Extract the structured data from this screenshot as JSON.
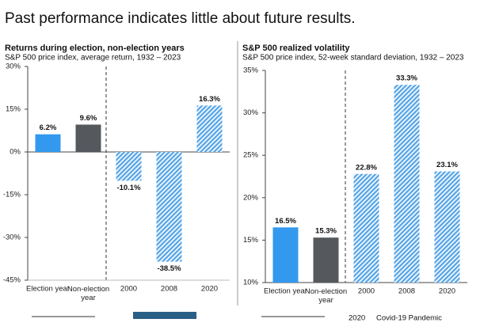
{
  "header": {
    "title": "Past performance indicates little about future results."
  },
  "chart_data": [
    {
      "type": "bar",
      "title": "Returns during election, non-election years",
      "subtitle": "S&P 500 price index, average return, 1932 – 2023",
      "categories": [
        "Election year",
        "Non-election year",
        "2000",
        "2008",
        "2020"
      ],
      "values": [
        6.2,
        9.6,
        -10.1,
        -38.5,
        16.3
      ],
      "value_labels": [
        "6.2%",
        "9.6%",
        "-10.1%",
        "-38.5%",
        "16.3%"
      ],
      "colors": [
        "#3399ee",
        "#55595e",
        "#5aa7e8",
        "#5aa7e8",
        "#5aa7e8"
      ],
      "hatched": [
        false,
        false,
        true,
        true,
        true
      ],
      "ylim": [
        -45,
        30
      ],
      "yticks": [
        {
          "value": -45,
          "label": "-45%"
        },
        {
          "value": -30,
          "label": "-30%"
        },
        {
          "value": -15,
          "label": "-15%"
        },
        {
          "value": 0,
          "label": "0%"
        },
        {
          "value": 15,
          "label": "15%"
        },
        {
          "value": 30,
          "label": "30%"
        }
      ]
    },
    {
      "type": "bar",
      "title": "S&P 500 realized volatility",
      "subtitle": "S&P 500 price index, 52-week standard deviation, 1932 – 2023",
      "categories": [
        "Election year",
        "Non-election year",
        "2000",
        "2008",
        "2020"
      ],
      "values": [
        16.5,
        15.3,
        22.8,
        33.3,
        23.1
      ],
      "value_labels": [
        "16.5%",
        "15.3%",
        "22.8%",
        "33.3%",
        "23.1%"
      ],
      "colors": [
        "#3399ee",
        "#55595e",
        "#5aa7e8",
        "#5aa7e8",
        "#5aa7e8"
      ],
      "hatched": [
        false,
        false,
        true,
        true,
        true
      ],
      "ylim": [
        10,
        35
      ],
      "yticks": [
        {
          "value": 10,
          "label": "10%"
        },
        {
          "value": 15,
          "label": "15%"
        },
        {
          "value": 20,
          "label": "20%"
        },
        {
          "value": 25,
          "label": "25%"
        },
        {
          "value": 30,
          "label": "30%"
        },
        {
          "value": 35,
          "label": "35%"
        }
      ]
    }
  ],
  "footer": {
    "year": "2020",
    "event": "Covid-19 Pandemic"
  }
}
